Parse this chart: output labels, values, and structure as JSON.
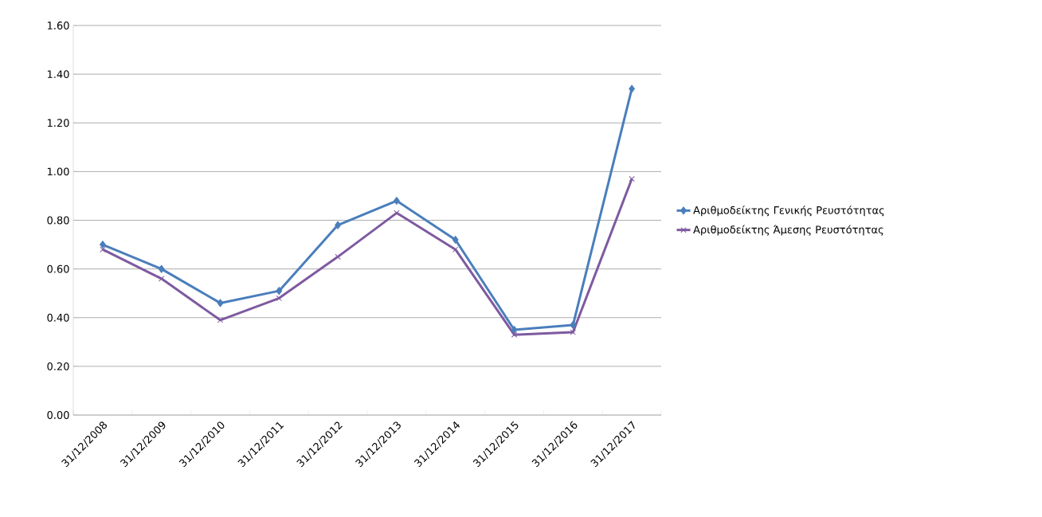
{
  "chart_data": {
    "type": "line",
    "categories": [
      "31/12/2008",
      "31/12/2009",
      "31/12/2010",
      "31/12/2011",
      "31/12/2012",
      "31/12/2013",
      "31/12/2014",
      "31/12/2015",
      "31/12/2016",
      "31/12/2017"
    ],
    "series": [
      {
        "name": "Αριθμοδείκτης Γενικής Ρευστότητας",
        "color": "#4a7ebb",
        "marker": "diamond",
        "values": [
          0.7,
          0.6,
          0.46,
          0.51,
          0.78,
          0.88,
          0.72,
          0.35,
          0.37,
          1.34
        ]
      },
      {
        "name": "Αριθμοδείκτης Άμεσης Ρευστότητας",
        "color": "#7e5aa0",
        "marker": "cross",
        "values": [
          0.68,
          0.56,
          0.39,
          0.48,
          0.65,
          0.83,
          0.68,
          0.33,
          0.34,
          0.97
        ]
      }
    ],
    "ylim": [
      0,
      1.6
    ],
    "yticks": [
      {
        "value": 0,
        "label": "0.00"
      },
      {
        "value": 0.2,
        "label": "0.20"
      },
      {
        "value": 0.4,
        "label": "0.40"
      },
      {
        "value": 0.6,
        "label": "0.60"
      },
      {
        "value": 0.8,
        "label": "0.80"
      },
      {
        "value": 1.0,
        "label": "1.00"
      },
      {
        "value": 1.2,
        "label": "1.20"
      },
      {
        "value": 1.4,
        "label": "1.40"
      },
      {
        "value": 1.6,
        "label": "1.60"
      }
    ],
    "grid": "y",
    "legend": "right",
    "line_style": "solid"
  }
}
